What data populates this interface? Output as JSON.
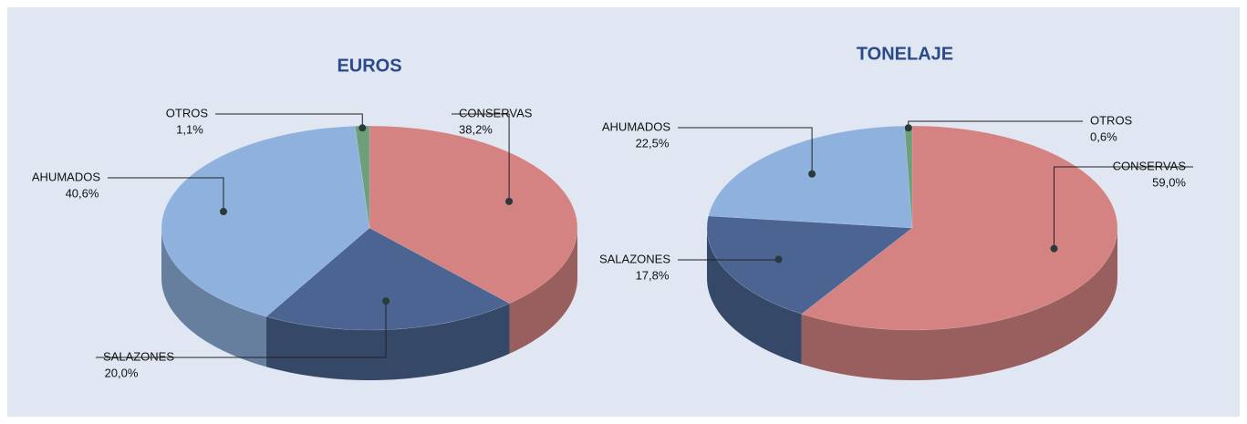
{
  "chart_data": [
    {
      "type": "pie",
      "title": "EUROS",
      "categories": [
        "CONSERVAS",
        "SALAZONES",
        "AHUMADOS",
        "OTROS"
      ],
      "values": [
        38.2,
        20.0,
        40.6,
        1.1
      ],
      "value_labels": [
        "38,2%",
        "20,0%",
        "40,6%",
        "1,1%"
      ],
      "colors": [
        "#d48282",
        "#4b6491",
        "#8fb1dd",
        "#6f9e7a"
      ]
    },
    {
      "type": "pie",
      "title": "TONELAJE",
      "categories": [
        "CONSERVAS",
        "SALAZONES",
        "AHUMADOS",
        "OTROS"
      ],
      "values": [
        59.0,
        17.8,
        22.5,
        0.6
      ],
      "value_labels": [
        "59,0%",
        "17,8%",
        "22,5%",
        "0,6%"
      ],
      "colors": [
        "#d48282",
        "#4b6491",
        "#8fb1dd",
        "#6f9e7a"
      ]
    }
  ]
}
